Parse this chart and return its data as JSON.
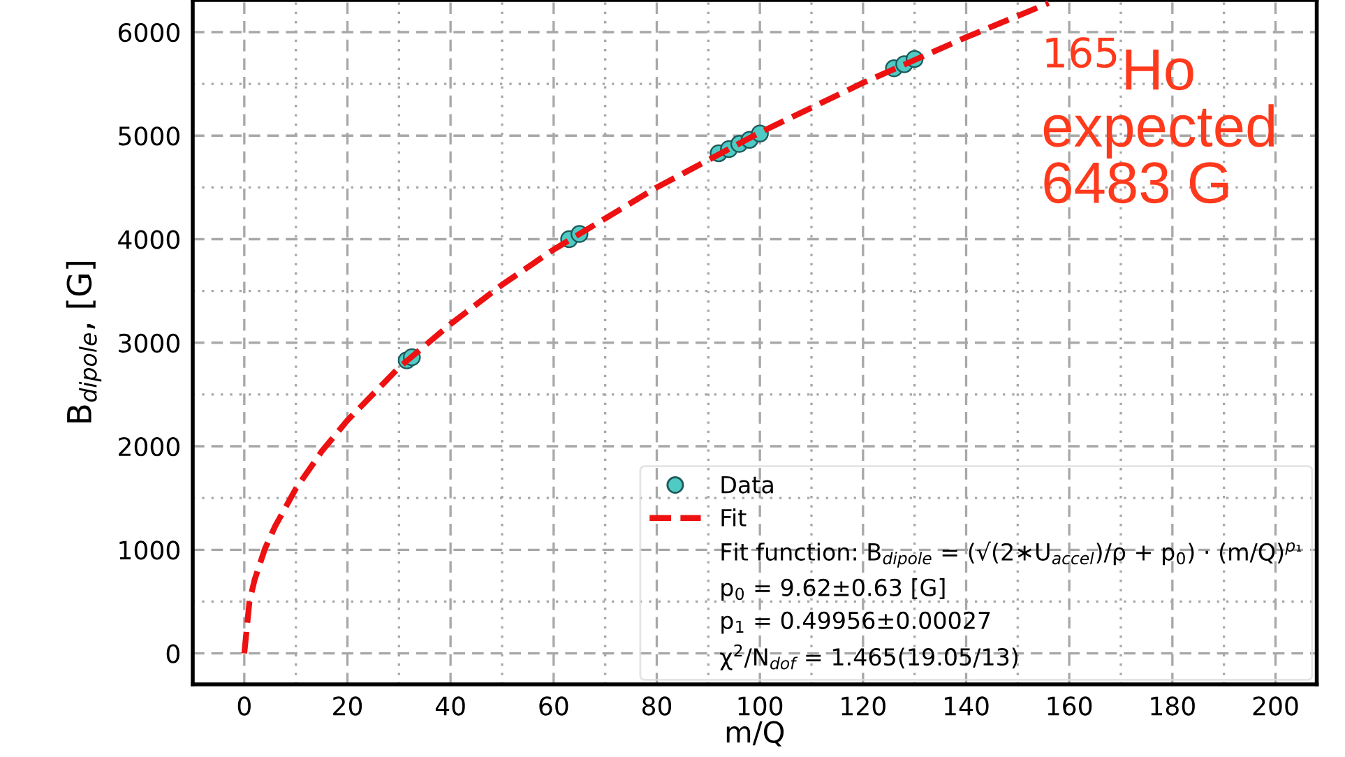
{
  "chart_data": {
    "type": "scatter",
    "xlabel": "m/Q",
    "ylabel": "B$_{dipole}$, [G]",
    "xlim": [
      -10,
      208
    ],
    "ylim": [
      -300,
      6310
    ],
    "xticks": [
      0,
      {
        "value": 10,
        "label": null
      },
      20,
      {
        "value": 30,
        "label": null
      },
      40,
      {
        "value": 50,
        "label": null
      },
      60,
      {
        "value": 70,
        "label": null
      },
      80,
      {
        "value": 90,
        "label": null
      },
      100,
      {
        "value": 110,
        "label": null
      },
      120,
      {
        "value": 130,
        "label": null
      },
      140,
      {
        "value": 150,
        "label": null
      },
      160,
      {
        "value": 170,
        "label": null
      },
      180,
      {
        "value": 190,
        "label": null
      },
      200
    ],
    "yticks": [
      0,
      {
        "value": 500,
        "label": null
      },
      1000,
      {
        "value": 1500,
        "label": null
      },
      2000,
      {
        "value": 2500,
        "label": null
      },
      3000,
      {
        "value": 3500,
        "label": null
      },
      4000,
      {
        "value": 4500,
        "label": null
      },
      5000,
      {
        "value": 5500,
        "label": null
      },
      6000
    ],
    "grid": true,
    "legend": "bottom right",
    "series": [
      {
        "name": "Data",
        "color": "#4fcbc4",
        "marker": "circle",
        "x": [
          31.5,
          32.5,
          63,
          65,
          92,
          94,
          96,
          98,
          100,
          126,
          128,
          130
        ],
        "values": [
          2830,
          2860,
          4000,
          4050,
          4830,
          4870,
          4920,
          4960,
          5020,
          5650,
          5690,
          5740
        ]
      },
      {
        "name": "Fit",
        "type": "line",
        "color": "#ee1111",
        "line_style": "dashed",
        "marker": "none",
        "x": [
          0,
          1,
          2,
          4,
          6,
          10,
          15,
          20,
          30,
          40,
          50,
          60,
          80,
          100,
          120,
          140,
          156
        ],
        "values": [
          0,
          500,
          710,
          1010,
          1230,
          1590,
          1950,
          2250,
          2760,
          3180,
          3560,
          3900,
          4500,
          5030,
          5510,
          5950,
          6280
        ]
      }
    ],
    "annotations": [
      "Fit function: B$_{dipole}$ = (√(2∗U$_{accel}$)/ρ + p$_{0}$) · (m/Q)$^{p₁}$",
      "p$_{0}$ = 9.62±0.63 [G]",
      "p$_{1}$ = 0.49956±0.00027",
      "χ$^{2}$/N$_{dof}$ = 1.465(19.05/13)",
      "$^{165}$Ho\nexpected\n6483 G"
    ]
  }
}
